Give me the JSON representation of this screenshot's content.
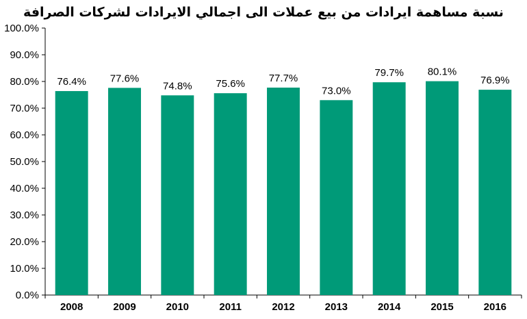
{
  "chart_data": {
    "type": "bar",
    "title": "نسبة مساهمة ايرادات من بيع عملات الى اجمالي الايرادات لشركات الصرافة",
    "categories": [
      "2008",
      "2009",
      "2010",
      "2011",
      "2012",
      "2013",
      "2014",
      "2015",
      "2016"
    ],
    "values": [
      76.4,
      77.6,
      74.8,
      75.6,
      77.7,
      73.0,
      79.7,
      80.1,
      76.9
    ],
    "data_labels": [
      "76.4%",
      "77.6%",
      "74.8%",
      "75.6%",
      "77.7%",
      "73.0%",
      "79.7%",
      "80.1%",
      "76.9%"
    ],
    "yticks": [
      "0.0%",
      "10.0%",
      "20.0%",
      "30.0%",
      "40.0%",
      "50.0%",
      "60.0%",
      "70.0%",
      "80.0%",
      "90.0%",
      "100.0%"
    ],
    "ylim": [
      0,
      100
    ],
    "grid": false,
    "legend": "none",
    "bar_color": "#009a78"
  }
}
